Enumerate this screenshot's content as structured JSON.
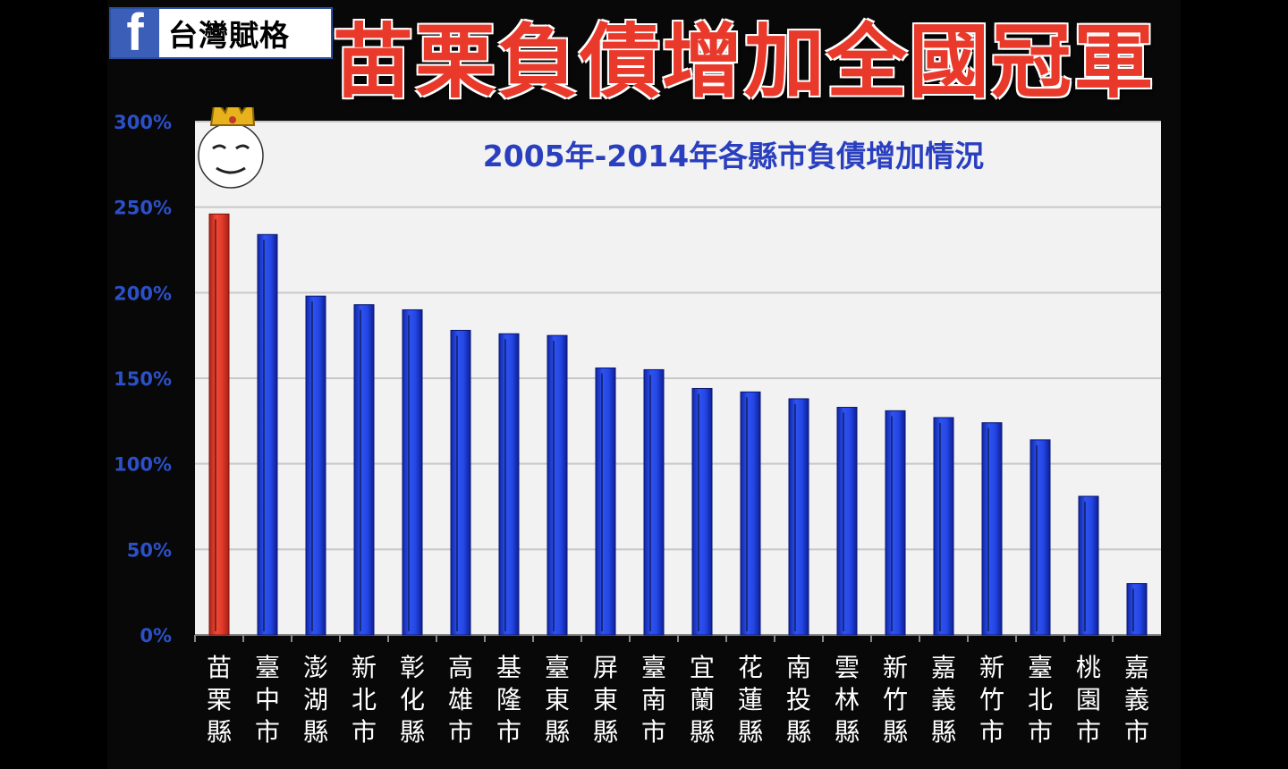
{
  "brand": {
    "name": "台灣賦格",
    "icon": "facebook-icon",
    "icon_glyph": "f"
  },
  "headline": "苗栗負債增加全國冠軍",
  "colors": {
    "highlight_bar": "#e03a2a",
    "bar": "#1f3fd8",
    "plot_bg": "#f2f2f2",
    "headline": "#e8392b",
    "tick": "#2b50c8"
  },
  "chart_data": {
    "type": "bar",
    "title": "2005年-2014年各縣市負債增加情況",
    "categories": [
      "苗栗縣",
      "臺中市",
      "澎湖縣",
      "新北市",
      "彰化縣",
      "高雄市",
      "基隆市",
      "臺東縣",
      "屏東縣",
      "臺南市",
      "宜蘭縣",
      "花蓮縣",
      "南投縣",
      "雲林縣",
      "新竹縣",
      "嘉義縣",
      "新竹市",
      "臺北市",
      "桃園市",
      "嘉義市"
    ],
    "values": [
      246,
      234,
      198,
      193,
      190,
      178,
      176,
      175,
      156,
      155,
      144,
      142,
      138,
      133,
      131,
      127,
      124,
      114,
      81,
      30
    ],
    "highlight_index": 0,
    "ylim": [
      0,
      300
    ],
    "yticks": [
      "0%",
      "50%",
      "100%",
      "150%",
      "200%",
      "250%",
      "300%"
    ],
    "ytick_values": [
      0,
      50,
      100,
      150,
      200,
      250,
      300
    ],
    "grid": true,
    "annotation_icon": "crowned-face-icon"
  }
}
